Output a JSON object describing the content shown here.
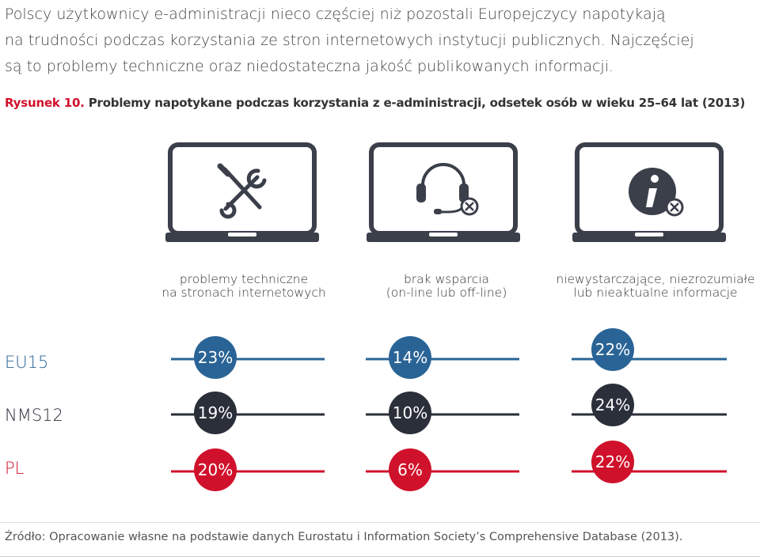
{
  "intro": {
    "lines": [
      "Polscy użytkownicy e-administracji nieco częściej niż pozostali Europejczycy napotykają",
      "na trudności podczas korzystania ze stron internetowych instytucji publicznych. Najczęściej",
      "są to problemy techniczne oraz niedostateczna jakość publikowanych informacji."
    ]
  },
  "caption": {
    "figure": "Rysunek 10.",
    "text": " Problemy napotykane podczas korzystania z e-administracji, odsetek osób w wieku 25–64 lat (2013)"
  },
  "icons": [
    "tools-icon",
    "headset-x-icon",
    "info-x-icon"
  ],
  "colors": {
    "EU15": "#2a6496",
    "NMS12": "#2b2f3a",
    "PL": "#d0112b",
    "laptop": "#3b3f4a"
  },
  "chart_data": {
    "type": "dot",
    "categories": [
      {
        "line1": "problemy techniczne",
        "line2": "na stronach internetowych"
      },
      {
        "line1": "brak wsparcia",
        "line2": "(on-line lub off-line)"
      },
      {
        "line1": "niewystarczające, niezrozumiałe",
        "line2": "lub nieaktualne informacje"
      }
    ],
    "series": [
      {
        "name": "EU15",
        "values": [
          23,
          14,
          22
        ],
        "labels": [
          "23%",
          "14%",
          "22%"
        ]
      },
      {
        "name": "NMS12",
        "values": [
          19,
          10,
          24
        ],
        "labels": [
          "19%",
          "10%",
          "24%"
        ]
      },
      {
        "name": "PL",
        "values": [
          20,
          6,
          22
        ],
        "labels": [
          "20%",
          "6%",
          "22%"
        ]
      }
    ],
    "unit": "%"
  },
  "source": "Źródło: Opracowanie własne na podstawie danych Eurostatu i Information Society’s Comprehensive Database (2013)."
}
